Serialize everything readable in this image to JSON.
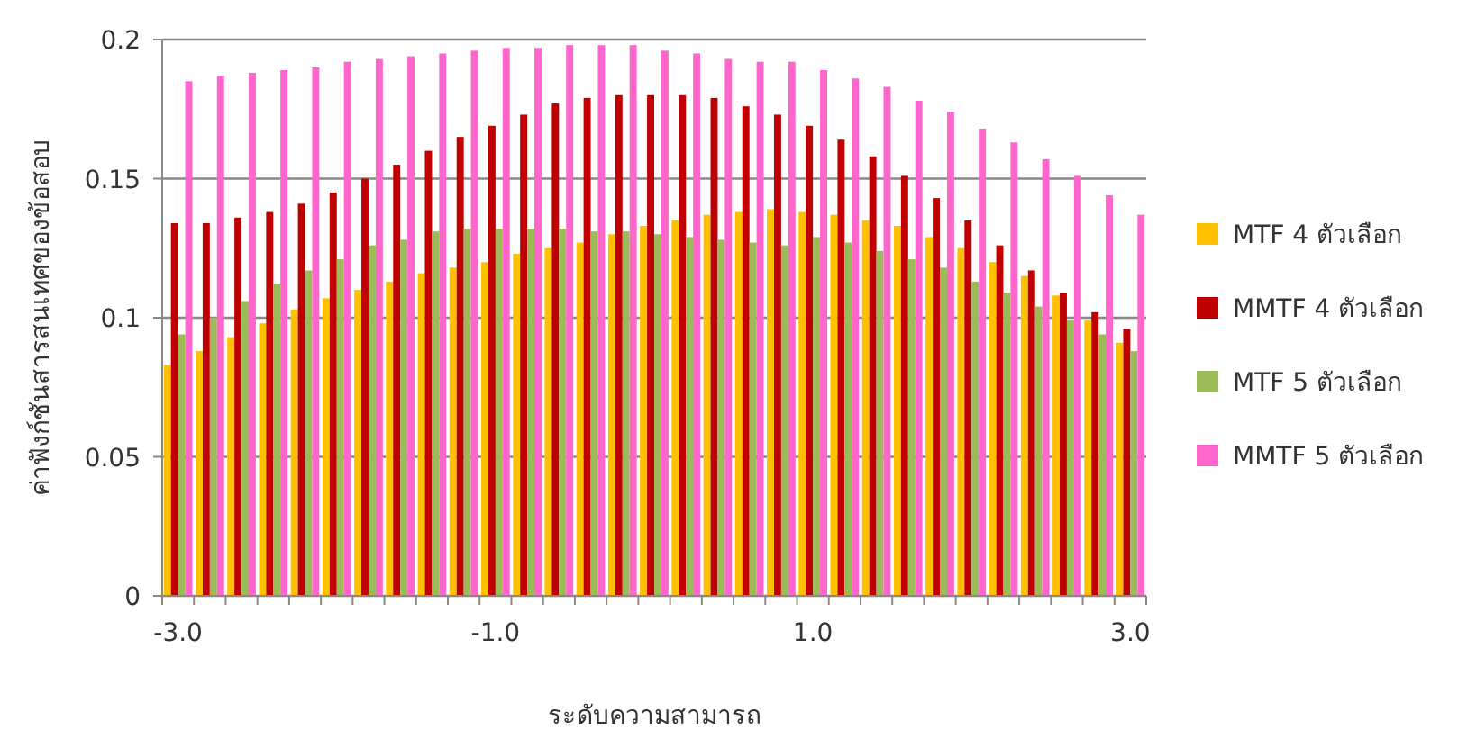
{
  "chart_data": {
    "type": "bar",
    "xlabel": "ระดับความสามารถ",
    "ylabel": "ค่าฟังก์ชันสารสนเทศของข้อสอบ",
    "categories": [
      "-3.0",
      null,
      null,
      null,
      null,
      null,
      null,
      null,
      null,
      null,
      "-1.0",
      null,
      null,
      null,
      null,
      null,
      null,
      null,
      null,
      null,
      "1.0",
      null,
      null,
      null,
      null,
      null,
      null,
      null,
      null,
      null,
      "3.0"
    ],
    "series": [
      {
        "name": "MTF 4 ตัวเลือก",
        "color": "#ffc000",
        "values": [
          0.083,
          0.088,
          0.093,
          0.098,
          0.103,
          0.107,
          0.11,
          0.113,
          0.116,
          0.118,
          0.12,
          0.123,
          0.125,
          0.127,
          0.13,
          0.133,
          0.135,
          0.137,
          0.138,
          0.139,
          0.138,
          0.137,
          0.135,
          0.133,
          0.129,
          0.125,
          0.12,
          0.115,
          0.108,
          0.099,
          0.091
        ]
      },
      {
        "name": "MMTF 4 ตัวเลือก",
        "color": "#c00000",
        "values": [
          0.134,
          0.134,
          0.136,
          0.138,
          0.141,
          0.145,
          0.15,
          0.155,
          0.16,
          0.165,
          0.169,
          0.173,
          0.177,
          0.179,
          0.18,
          0.18,
          0.18,
          0.179,
          0.176,
          0.173,
          0.169,
          0.164,
          0.158,
          0.151,
          0.143,
          0.135,
          0.126,
          0.117,
          0.109,
          0.102,
          0.096
        ]
      },
      {
        "name": "MTF 5 ตัวเลือก",
        "color": "#9bbb59",
        "values": [
          0.094,
          0.1,
          0.106,
          0.112,
          0.117,
          0.121,
          0.126,
          0.128,
          0.131,
          0.132,
          0.132,
          0.132,
          0.132,
          0.131,
          0.131,
          0.13,
          0.129,
          0.128,
          0.127,
          0.126,
          0.129,
          0.127,
          0.124,
          0.121,
          0.118,
          0.113,
          0.109,
          0.104,
          0.099,
          0.094,
          0.088
        ]
      },
      {
        "name": "MMTF 5 ตัวเลือก",
        "color": "#ff66cc",
        "values": [
          0.185,
          0.187,
          0.188,
          0.189,
          0.19,
          0.192,
          0.193,
          0.194,
          0.195,
          0.196,
          0.197,
          0.197,
          0.198,
          0.198,
          0.198,
          0.196,
          0.195,
          0.193,
          0.192,
          0.192,
          0.189,
          0.186,
          0.183,
          0.178,
          0.174,
          0.168,
          0.163,
          0.157,
          0.151,
          0.144,
          0.137
        ]
      }
    ],
    "ylim": [
      0,
      0.2
    ],
    "yticks": [
      0,
      0.05,
      0.1,
      0.15,
      0.2
    ],
    "grid": "y",
    "legend": "right"
  }
}
